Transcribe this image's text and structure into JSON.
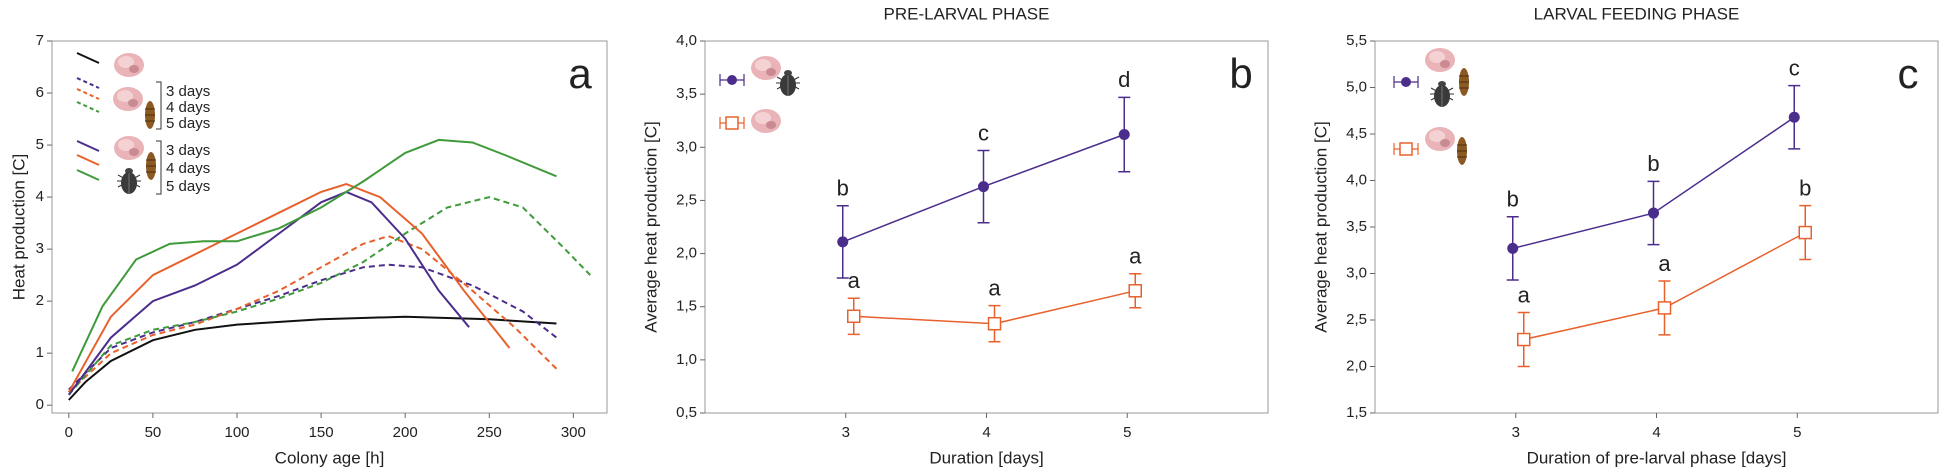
{
  "chart_data": [
    {
      "type": "line",
      "panel_label": "a",
      "x_label": "Colony age [h]",
      "y_label": "Heat production [C]",
      "xlim": [
        -10,
        320
      ],
      "ylim": [
        -0.15,
        7.0
      ],
      "xticks": [
        0,
        50,
        100,
        150,
        200,
        250,
        300
      ],
      "yticks": [
        0,
        1,
        2,
        3,
        4,
        5,
        6,
        7
      ],
      "series": [
        {
          "color": "#111111",
          "dashed": false,
          "x": [
            0,
            10,
            25,
            50,
            75,
            100,
            150,
            200,
            250,
            290
          ],
          "values": [
            0.1,
            0.45,
            0.85,
            1.25,
            1.45,
            1.55,
            1.65,
            1.7,
            1.65,
            1.57
          ]
        },
        {
          "name": "3 days",
          "color": "#4b2d8c",
          "dashed": true,
          "x": [
            0,
            25,
            50,
            75,
            100,
            125,
            150,
            175,
            190,
            210,
            240,
            270,
            290
          ],
          "values": [
            0.3,
            1.1,
            1.4,
            1.6,
            1.85,
            2.1,
            2.4,
            2.65,
            2.7,
            2.65,
            2.3,
            1.8,
            1.3
          ]
        },
        {
          "name": "4 days",
          "color": "#e8612c",
          "dashed": true,
          "x": [
            0,
            25,
            50,
            75,
            100,
            125,
            150,
            175,
            190,
            210,
            240,
            265,
            290
          ],
          "values": [
            0.25,
            1.0,
            1.35,
            1.55,
            1.85,
            2.2,
            2.65,
            3.1,
            3.25,
            3.0,
            2.2,
            1.5,
            0.7
          ]
        },
        {
          "name": "5 days",
          "color": "#3f9a3a",
          "dashed": true,
          "x": [
            0,
            25,
            50,
            75,
            100,
            125,
            150,
            175,
            200,
            225,
            250,
            270,
            295,
            310
          ],
          "values": [
            0.2,
            1.15,
            1.45,
            1.6,
            1.8,
            2.05,
            2.35,
            2.75,
            3.3,
            3.8,
            4.0,
            3.8,
            3.0,
            2.5
          ]
        },
        {
          "name": "3 days",
          "color": "#4b2d8c",
          "dashed": false,
          "x": [
            0,
            25,
            50,
            75,
            100,
            125,
            150,
            165,
            180,
            200,
            220,
            238
          ],
          "values": [
            0.2,
            1.3,
            2.0,
            2.3,
            2.7,
            3.3,
            3.9,
            4.1,
            3.9,
            3.2,
            2.2,
            1.5
          ]
        },
        {
          "name": "4 days",
          "color": "#e8612c",
          "dashed": false,
          "x": [
            0,
            25,
            50,
            75,
            100,
            125,
            150,
            165,
            185,
            210,
            235,
            262
          ],
          "values": [
            0.25,
            1.7,
            2.5,
            2.9,
            3.3,
            3.7,
            4.1,
            4.25,
            4.0,
            3.3,
            2.2,
            1.1
          ]
        },
        {
          "name": "5 days",
          "color": "#3f9a3a",
          "dashed": false,
          "x": [
            2,
            20,
            40,
            60,
            80,
            100,
            125,
            150,
            175,
            200,
            220,
            240,
            260,
            290
          ],
          "values": [
            0.65,
            1.9,
            2.8,
            3.1,
            3.15,
            3.15,
            3.4,
            3.8,
            4.3,
            4.85,
            5.1,
            5.05,
            4.8,
            4.4
          ]
        }
      ]
    },
    {
      "type": "errorbar",
      "title": "PRE-LARVAL PHASE",
      "panel_label": "b",
      "x_label": "Duration [days]",
      "y_label": "Average heat production [C]",
      "x": [
        3,
        4,
        5
      ],
      "xlim": [
        2,
        6
      ],
      "ylim": [
        0.5,
        4.0
      ],
      "xticks": [
        3,
        4,
        5
      ],
      "yticks": [
        {
          "value": 0.5,
          "label": "0,5"
        },
        {
          "value": 1.0,
          "label": "1,0"
        },
        {
          "value": 1.5,
          "label": "1,5"
        },
        {
          "value": 2.0,
          "label": "2,0"
        },
        {
          "value": 2.5,
          "label": "2,5"
        },
        {
          "value": 3.0,
          "label": "3,0"
        },
        {
          "value": 3.5,
          "label": "3,5"
        },
        {
          "value": 4.0,
          "label": "4,0"
        }
      ],
      "series": [
        {
          "color": "#4b2d8c",
          "marker": "circle",
          "values": [
            2.11,
            2.63,
            3.12
          ],
          "errors": [
            0.34,
            0.34,
            0.35
          ],
          "labels": [
            "b",
            "c",
            "d"
          ]
        },
        {
          "color": "#e8612c",
          "marker": "square",
          "values": [
            1.41,
            1.34,
            1.65
          ],
          "errors": [
            0.17,
            0.17,
            0.16
          ],
          "labels": [
            "a",
            "a",
            "a"
          ]
        }
      ]
    },
    {
      "type": "errorbar",
      "title": "LARVAL FEEDING PHASE",
      "panel_label": "c",
      "x_label": "Duration of pre-larval phase [days]",
      "y_label": "Average heat production [C]",
      "x": [
        3,
        4,
        5
      ],
      "xlim": [
        2,
        6
      ],
      "ylim": [
        1.5,
        5.5
      ],
      "xticks": [
        3,
        4,
        5
      ],
      "yticks": [
        {
          "value": 1.5,
          "label": "1,5"
        },
        {
          "value": 2.0,
          "label": "2,0"
        },
        {
          "value": 2.5,
          "label": "2,5"
        },
        {
          "value": 3.0,
          "label": "3,0"
        },
        {
          "value": 3.5,
          "label": "3,5"
        },
        {
          "value": 4.0,
          "label": "4,0"
        },
        {
          "value": 4.5,
          "label": "4,5"
        },
        {
          "value": 5.0,
          "label": "5,0"
        },
        {
          "value": 5.5,
          "label": "5,5"
        }
      ],
      "series": [
        {
          "color": "#4b2d8c",
          "marker": "circle",
          "values": [
            3.27,
            3.65,
            4.68
          ],
          "errors": [
            0.34,
            0.34,
            0.34
          ],
          "labels": [
            "b",
            "b",
            "c"
          ]
        },
        {
          "color": "#e8612c",
          "marker": "square",
          "values": [
            2.29,
            2.63,
            3.44
          ],
          "errors": [
            0.29,
            0.29,
            0.29
          ],
          "labels": [
            "a",
            "a",
            "b"
          ]
        }
      ]
    }
  ]
}
